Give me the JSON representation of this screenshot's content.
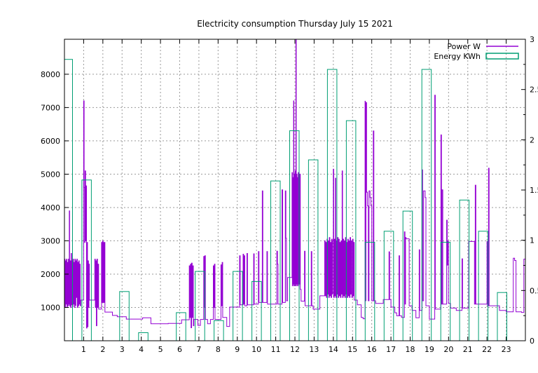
{
  "window": {
    "title": "Electricity consumption Thursday July 15 2021"
  },
  "colors": {
    "power": "#9400d3",
    "energy": "#009e73",
    "grid": "#9a9a9a",
    "axis": "#000000",
    "background": "#ffffff"
  },
  "legend": {
    "position": "top-right",
    "entries": [
      {
        "label": "Power W",
        "sample": "line",
        "color": "#9400d3"
      },
      {
        "label": "Energy KWh",
        "sample": "box",
        "color": "#009e73"
      }
    ]
  },
  "chart_data": {
    "type": "combo",
    "title": "Electricity consumption Thursday July 15 2021",
    "grid": true,
    "legend_position": "top-right",
    "x_axis": {
      "label": "",
      "range": [
        0,
        24
      ],
      "units": "hour of day",
      "tick_values": [
        1,
        2,
        3,
        4,
        5,
        6,
        7,
        8,
        9,
        10,
        11,
        12,
        13,
        14,
        15,
        16,
        17,
        18,
        19,
        20,
        21,
        22,
        23
      ],
      "tick_labels": [
        "1",
        "2",
        "3",
        "4",
        "5",
        "6",
        "7",
        "8",
        "9",
        "10",
        "11",
        "12",
        "13",
        "14",
        "15",
        "16",
        "17",
        "18",
        "19",
        "20",
        "21",
        "22",
        "23"
      ]
    },
    "y_left": {
      "label": "",
      "units": "W",
      "range": [
        0,
        9050
      ],
      "tick_values": [
        1000,
        2000,
        3000,
        4000,
        5000,
        6000,
        7000,
        8000
      ],
      "tick_labels": [
        "1000",
        "2000",
        "3000",
        "4000",
        "5000",
        "6000",
        "7000",
        "8000"
      ]
    },
    "y_right": {
      "label": "",
      "units": "KWh",
      "range": [
        0,
        3
      ],
      "tick_values": [
        0,
        0.5,
        1,
        1.5,
        2,
        2.5,
        3
      ],
      "tick_labels": [
        "0",
        "0.5",
        "1",
        "1.5",
        "2",
        "2.5",
        "3"
      ],
      "minor_tick_step": 0.25
    },
    "series": [
      {
        "name": "Power W",
        "type": "steps",
        "axis": "left",
        "unit": "W",
        "color": "#9400d3",
        "points": [
          [
            0.0,
            2450
          ],
          [
            0.03,
            1020
          ],
          [
            0.055,
            2400
          ],
          [
            0.08,
            1100
          ],
          [
            0.105,
            2450
          ],
          [
            0.13,
            1000
          ],
          [
            0.155,
            2350
          ],
          [
            0.18,
            1050
          ],
          [
            0.205,
            2450
          ],
          [
            0.23,
            1100
          ],
          [
            0.25,
            3900
          ],
          [
            0.27,
            1050
          ],
          [
            0.295,
            2400
          ],
          [
            0.32,
            1000
          ],
          [
            0.345,
            2620
          ],
          [
            0.37,
            1080
          ],
          [
            0.395,
            2400
          ],
          [
            0.42,
            1020
          ],
          [
            0.445,
            2450
          ],
          [
            0.47,
            1100
          ],
          [
            0.495,
            2350
          ],
          [
            0.52,
            1000
          ],
          [
            0.545,
            2450
          ],
          [
            0.57,
            1060
          ],
          [
            0.595,
            2400
          ],
          [
            0.62,
            1300
          ],
          [
            0.645,
            2450
          ],
          [
            0.67,
            1000
          ],
          [
            0.695,
            2350
          ],
          [
            0.72,
            1050
          ],
          [
            0.745,
            2400
          ],
          [
            0.77,
            1100
          ],
          [
            0.795,
            2300
          ],
          [
            0.82,
            1050
          ],
          [
            0.85,
            1220
          ],
          [
            1.0,
            7200
          ],
          [
            1.025,
            4600
          ],
          [
            1.05,
            2950
          ],
          [
            1.075,
            5100
          ],
          [
            1.1,
            3000
          ],
          [
            1.125,
            4650
          ],
          [
            1.15,
            380
          ],
          [
            1.175,
            2950
          ],
          [
            1.2,
            420
          ],
          [
            1.225,
            2400
          ],
          [
            1.25,
            1000
          ],
          [
            1.275,
            2300
          ],
          [
            1.3,
            1220
          ],
          [
            1.58,
            2450
          ],
          [
            1.61,
            1000
          ],
          [
            1.64,
            2400
          ],
          [
            1.66,
            450
          ],
          [
            1.69,
            2450
          ],
          [
            1.72,
            1000
          ],
          [
            1.75,
            2300
          ],
          [
            1.78,
            950
          ],
          [
            1.93,
            2950
          ],
          [
            1.96,
            1150
          ],
          [
            1.985,
            3000
          ],
          [
            2.01,
            1150
          ],
          [
            2.035,
            2950
          ],
          [
            2.06,
            1150
          ],
          [
            2.085,
            2950
          ],
          [
            2.11,
            860
          ],
          [
            2.5,
            760
          ],
          [
            2.75,
            720
          ],
          [
            3.22,
            650
          ],
          [
            4.07,
            690
          ],
          [
            4.5,
            510
          ],
          [
            5.4,
            520
          ],
          [
            6.1,
            630
          ],
          [
            6.5,
            2250
          ],
          [
            6.53,
            700
          ],
          [
            6.56,
            2300
          ],
          [
            6.59,
            390
          ],
          [
            6.62,
            2330
          ],
          [
            6.65,
            700
          ],
          [
            6.68,
            2250
          ],
          [
            6.71,
            450
          ],
          [
            6.74,
            640
          ],
          [
            6.95,
            460
          ],
          [
            7.08,
            640
          ],
          [
            7.25,
            2530
          ],
          [
            7.28,
            1000
          ],
          [
            7.31,
            2550
          ],
          [
            7.34,
            640
          ],
          [
            7.45,
            510
          ],
          [
            7.6,
            640
          ],
          [
            7.75,
            2250
          ],
          [
            7.78,
            1000
          ],
          [
            7.81,
            2300
          ],
          [
            7.84,
            640
          ],
          [
            8.15,
            2280
          ],
          [
            8.18,
            1050
          ],
          [
            8.21,
            2350
          ],
          [
            8.24,
            700
          ],
          [
            8.45,
            430
          ],
          [
            8.6,
            1010
          ],
          [
            9.12,
            2550
          ],
          [
            9.15,
            1080
          ],
          [
            9.3,
            2600
          ],
          [
            9.33,
            1100
          ],
          [
            9.36,
            2550
          ],
          [
            9.39,
            1050
          ],
          [
            9.5,
            2620
          ],
          [
            9.53,
            1080
          ],
          [
            9.85,
            2610
          ],
          [
            9.88,
            1100
          ],
          [
            10.1,
            2680
          ],
          [
            10.13,
            1150
          ],
          [
            10.3,
            4500
          ],
          [
            10.33,
            1150
          ],
          [
            10.54,
            2680
          ],
          [
            10.57,
            1100
          ],
          [
            11.06,
            2690
          ],
          [
            11.09,
            2300
          ],
          [
            11.12,
            1100
          ],
          [
            11.33,
            4530
          ],
          [
            11.36,
            1150
          ],
          [
            11.5,
            4500
          ],
          [
            11.53,
            3080
          ],
          [
            11.56,
            1200
          ],
          [
            11.62,
            1900
          ],
          [
            11.85,
            5050
          ],
          [
            11.87,
            1650
          ],
          [
            11.89,
            4900
          ],
          [
            11.91,
            1700
          ],
          [
            11.93,
            7200
          ],
          [
            11.95,
            1650
          ],
          [
            11.97,
            5000
          ],
          [
            11.99,
            1700
          ],
          [
            12.01,
            5100
          ],
          [
            12.03,
            1650
          ],
          [
            12.05,
            9400
          ],
          [
            12.07,
            1700
          ],
          [
            12.09,
            5000
          ],
          [
            12.11,
            1650
          ],
          [
            12.13,
            4900
          ],
          [
            12.15,
            1700
          ],
          [
            12.17,
            5050
          ],
          [
            12.19,
            1650
          ],
          [
            12.21,
            4950
          ],
          [
            12.23,
            1700
          ],
          [
            12.25,
            5000
          ],
          [
            12.28,
            1540
          ],
          [
            12.32,
            1190
          ],
          [
            12.5,
            2690
          ],
          [
            12.53,
            1050
          ],
          [
            12.85,
            2680
          ],
          [
            12.88,
            1050
          ],
          [
            12.95,
            950
          ],
          [
            13.3,
            1350
          ],
          [
            13.55,
            3000
          ],
          [
            13.58,
            1350
          ],
          [
            13.61,
            2950
          ],
          [
            13.64,
            1300
          ],
          [
            13.67,
            3050
          ],
          [
            13.7,
            1400
          ],
          [
            13.73,
            3000
          ],
          [
            13.76,
            1300
          ],
          [
            13.79,
            3100
          ],
          [
            13.82,
            1350
          ],
          [
            13.85,
            2950
          ],
          [
            13.88,
            1300
          ],
          [
            13.91,
            3050
          ],
          [
            13.94,
            1400
          ],
          [
            13.97,
            3000
          ],
          [
            14.0,
            5150
          ],
          [
            14.02,
            1300
          ],
          [
            14.05,
            3050
          ],
          [
            14.08,
            1350
          ],
          [
            14.11,
            4880
          ],
          [
            14.13,
            1300
          ],
          [
            14.16,
            3000
          ],
          [
            14.19,
            1400
          ],
          [
            14.22,
            3100
          ],
          [
            14.25,
            1300
          ],
          [
            14.28,
            3050
          ],
          [
            14.31,
            1350
          ],
          [
            14.34,
            2950
          ],
          [
            14.37,
            1300
          ],
          [
            14.4,
            3000
          ],
          [
            14.43,
            1400
          ],
          [
            14.46,
            5100
          ],
          [
            14.48,
            1300
          ],
          [
            14.51,
            3050
          ],
          [
            14.54,
            1350
          ],
          [
            14.57,
            3000
          ],
          [
            14.6,
            1300
          ],
          [
            14.63,
            3100
          ],
          [
            14.66,
            1400
          ],
          [
            14.69,
            2950
          ],
          [
            14.72,
            1300
          ],
          [
            14.75,
            3050
          ],
          [
            14.78,
            1350
          ],
          [
            14.81,
            3000
          ],
          [
            14.84,
            1300
          ],
          [
            14.87,
            3100
          ],
          [
            14.9,
            1400
          ],
          [
            14.93,
            3000
          ],
          [
            14.96,
            1300
          ],
          [
            15.0,
            3050
          ],
          [
            15.03,
            1350
          ],
          [
            15.06,
            2950
          ],
          [
            15.09,
            1220
          ],
          [
            15.25,
            1080
          ],
          [
            15.45,
            700
          ],
          [
            15.55,
            660
          ],
          [
            15.65,
            7190
          ],
          [
            15.67,
            1200
          ],
          [
            15.7,
            7150
          ],
          [
            15.73,
            4460
          ],
          [
            15.78,
            4050
          ],
          [
            15.82,
            1200
          ],
          [
            15.86,
            4500
          ],
          [
            15.91,
            4300
          ],
          [
            15.96,
            4050
          ],
          [
            16.0,
            1200
          ],
          [
            16.08,
            6300
          ],
          [
            16.11,
            1200
          ],
          [
            16.2,
            1120
          ],
          [
            16.6,
            1235
          ],
          [
            16.9,
            2670
          ],
          [
            16.93,
            1235
          ],
          [
            17.0,
            1010
          ],
          [
            17.2,
            840
          ],
          [
            17.3,
            750
          ],
          [
            17.42,
            2550
          ],
          [
            17.45,
            750
          ],
          [
            17.55,
            700
          ],
          [
            17.7,
            3270
          ],
          [
            17.73,
            1100
          ],
          [
            17.76,
            3100
          ],
          [
            17.79,
            3060
          ],
          [
            17.95,
            1050
          ],
          [
            18.1,
            910
          ],
          [
            18.3,
            690
          ],
          [
            18.47,
            2730
          ],
          [
            18.5,
            910
          ],
          [
            18.62,
            5130
          ],
          [
            18.65,
            1200
          ],
          [
            18.7,
            4500
          ],
          [
            18.78,
            4300
          ],
          [
            18.82,
            1050
          ],
          [
            19.0,
            650
          ],
          [
            19.28,
            7370
          ],
          [
            19.31,
            950
          ],
          [
            19.6,
            6180
          ],
          [
            19.63,
            1100
          ],
          [
            19.66,
            4530
          ],
          [
            19.7,
            1100
          ],
          [
            19.9,
            3620
          ],
          [
            19.93,
            2270
          ],
          [
            19.96,
            3000
          ],
          [
            19.99,
            1120
          ],
          [
            20.1,
            980
          ],
          [
            20.4,
            910
          ],
          [
            20.7,
            2460
          ],
          [
            20.73,
            980
          ],
          [
            21.05,
            2980
          ],
          [
            21.35,
            1100
          ],
          [
            21.39,
            4670
          ],
          [
            21.42,
            1100
          ],
          [
            22.0,
            2980
          ],
          [
            22.03,
            1050
          ],
          [
            22.08,
            5180
          ],
          [
            22.11,
            1050
          ],
          [
            22.65,
            910
          ],
          [
            23.0,
            870
          ],
          [
            23.37,
            2480
          ],
          [
            23.44,
            2410
          ],
          [
            23.51,
            870
          ],
          [
            23.8,
            850
          ],
          [
            23.92,
            2450
          ]
        ]
      },
      {
        "name": "Energy KWh",
        "type": "boxes",
        "axis": "right",
        "unit": "KWh",
        "color": "#009e73",
        "x_hours": [
          0,
          1,
          2,
          3,
          4,
          5,
          6,
          7,
          8,
          9,
          10,
          11,
          12,
          13,
          14,
          15,
          16,
          17,
          18,
          19,
          20,
          21,
          22,
          23
        ],
        "values": [
          2.8,
          1.6,
          0.0,
          0.49,
          0.08,
          0.0,
          0.28,
          0.69,
          0.2,
          0.69,
          0.59,
          1.59,
          2.09,
          1.8,
          2.7,
          2.19,
          0.98,
          1.09,
          1.29,
          2.7,
          0.98,
          1.4,
          1.09,
          0.48
        ]
      }
    ]
  }
}
